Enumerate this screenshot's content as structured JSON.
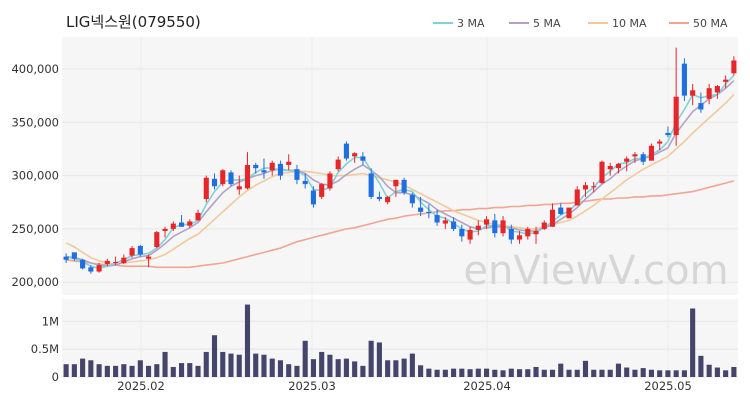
{
  "chart_data": [
    {
      "type": "candlestick",
      "title": "LIG넥스원(079550)",
      "ylim": [
        188000,
        430000
      ],
      "y_ticks": [
        "200,000",
        "250,000",
        "300,000",
        "350,000",
        "400,000"
      ],
      "y_tick_values": [
        200000,
        250000,
        300000,
        350000,
        400000
      ],
      "x_ticks": [
        "2025.02",
        "2025.03",
        "2025.04",
        "2025.05"
      ],
      "grid": true,
      "legend_position": "top-right",
      "series": [
        {
          "name": "3 MA",
          "color": "#7fd3d8"
        },
        {
          "name": "5 MA",
          "color": "#b3a2c7"
        },
        {
          "name": "10 MA",
          "color": "#f2c99a"
        },
        {
          "name": "50 MA",
          "color": "#f2a593"
        }
      ],
      "up_color": "#e8262a",
      "down_color": "#1f6fe0",
      "ohlc": [
        [
          224000,
          227000,
          218000,
          221000
        ],
        [
          228000,
          228000,
          220000,
          222000
        ],
        [
          221000,
          222000,
          212000,
          213000
        ],
        [
          214000,
          216000,
          208000,
          210000
        ],
        [
          210000,
          218000,
          209000,
          216000
        ],
        [
          217000,
          222000,
          215000,
          220000
        ],
        [
          219000,
          224000,
          216000,
          219000
        ],
        [
          218000,
          226000,
          217000,
          223000
        ],
        [
          225000,
          234000,
          223000,
          232000
        ],
        [
          234000,
          235000,
          224000,
          226000
        ],
        [
          222000,
          226000,
          214000,
          224000
        ],
        [
          233000,
          248000,
          232000,
          247000
        ],
        [
          248000,
          252000,
          242000,
          250000
        ],
        [
          250000,
          257000,
          248000,
          255000
        ],
        [
          256000,
          263000,
          252000,
          252000
        ],
        [
          253000,
          259000,
          251000,
          257000
        ],
        [
          258000,
          268000,
          258000,
          265000
        ],
        [
          278000,
          300000,
          275000,
          298000
        ],
        [
          297000,
          302000,
          287000,
          290000
        ],
        [
          292000,
          306000,
          290000,
          305000
        ],
        [
          303000,
          305000,
          290000,
          292000
        ],
        [
          287000,
          300000,
          282000,
          290000
        ],
        [
          288000,
          322000,
          287000,
          310000
        ],
        [
          310000,
          312000,
          302000,
          307000
        ],
        [
          305000,
          316000,
          297000,
          303000
        ],
        [
          305000,
          314000,
          300000,
          312000
        ],
        [
          311000,
          314000,
          296000,
          300000
        ],
        [
          310000,
          320000,
          305000,
          313000
        ],
        [
          306000,
          310000,
          292000,
          296000
        ],
        [
          295000,
          302000,
          288000,
          292000
        ],
        [
          286000,
          290000,
          270000,
          273000
        ],
        [
          280000,
          293000,
          278000,
          292000
        ],
        [
          288000,
          304000,
          286000,
          302000
        ],
        [
          306000,
          318000,
          304000,
          315000
        ],
        [
          330000,
          332000,
          314000,
          316000
        ],
        [
          318000,
          322000,
          312000,
          321000
        ],
        [
          318000,
          322000,
          310000,
          314000
        ],
        [
          302000,
          307000,
          278000,
          280000
        ],
        [
          280000,
          285000,
          276000,
          278000
        ],
        [
          275000,
          281000,
          273000,
          280000
        ],
        [
          290000,
          296000,
          280000,
          296000
        ],
        [
          296000,
          298000,
          282000,
          284000
        ],
        [
          282000,
          284000,
          270000,
          274000
        ],
        [
          270000,
          280000,
          262000,
          266000
        ],
        [
          266000,
          273000,
          260000,
          265000
        ],
        [
          263000,
          268000,
          253000,
          256000
        ],
        [
          255000,
          261000,
          250000,
          258000
        ],
        [
          257000,
          261000,
          248000,
          250000
        ],
        [
          250000,
          254000,
          238000,
          243000
        ],
        [
          240000,
          252000,
          236000,
          249000
        ],
        [
          249000,
          258000,
          244000,
          253000
        ],
        [
          254000,
          262000,
          250000,
          259000
        ],
        [
          258000,
          264000,
          242000,
          246000
        ],
        [
          246000,
          262000,
          243000,
          258000
        ],
        [
          250000,
          254000,
          236000,
          240000
        ],
        [
          240000,
          248000,
          236000,
          244000
        ],
        [
          243000,
          252000,
          240000,
          250000
        ],
        [
          245000,
          252000,
          236000,
          248000
        ],
        [
          250000,
          258000,
          249000,
          256000
        ],
        [
          252000,
          274000,
          252000,
          268000
        ],
        [
          270000,
          274000,
          263000,
          264000
        ],
        [
          260000,
          270000,
          260000,
          270000
        ],
        [
          272000,
          290000,
          272000,
          287000
        ],
        [
          287000,
          294000,
          280000,
          291000
        ],
        [
          289000,
          294000,
          284000,
          290000
        ],
        [
          293000,
          314000,
          292000,
          313000
        ],
        [
          306000,
          312000,
          300000,
          309000
        ],
        [
          307000,
          312000,
          302000,
          311000
        ],
        [
          313000,
          318000,
          304000,
          316000
        ],
        [
          318000,
          322000,
          312000,
          320000
        ],
        [
          320000,
          322000,
          310000,
          313000
        ],
        [
          314000,
          330000,
          314000,
          328000
        ],
        [
          330000,
          334000,
          324000,
          332000
        ],
        [
          340000,
          346000,
          336000,
          338000
        ],
        [
          338000,
          420000,
          328000,
          374000
        ],
        [
          405000,
          410000,
          370000,
          375000
        ],
        [
          375000,
          386000,
          366000,
          380000
        ],
        [
          368000,
          378000,
          359000,
          362000
        ],
        [
          372000,
          386000,
          367000,
          382000
        ],
        [
          378000,
          385000,
          372000,
          384000
        ],
        [
          388000,
          394000,
          382000,
          390000
        ],
        [
          396000,
          412000,
          394000,
          408000
        ]
      ],
      "ma3": [
        224000,
        222000,
        219000,
        215000,
        213000,
        215000,
        218000,
        221000,
        225000,
        226000,
        227000,
        232000,
        240000,
        251000,
        254000,
        254000,
        258000,
        273000,
        285000,
        294000,
        296000,
        296000,
        297000,
        303000,
        307000,
        307000,
        305000,
        305000,
        304000,
        300000,
        287000,
        286000,
        289000,
        303000,
        311000,
        317000,
        317000,
        305000,
        293000,
        279000,
        285000,
        287000,
        285000,
        275000,
        268000,
        262000,
        260000,
        255000,
        250000,
        247000,
        248000,
        253000,
        253000,
        254000,
        248000,
        247000,
        245000,
        247000,
        251000,
        257000,
        263000,
        267000,
        274000,
        283000,
        289000,
        298000,
        304000,
        311000,
        312000,
        316000,
        316000,
        320000,
        324000,
        332000,
        350000,
        362000,
        376000,
        373000,
        375000,
        376000,
        386000,
        394000
      ],
      "ma5": [
        224000,
        223000,
        221000,
        218000,
        216000,
        215000,
        216000,
        219000,
        222000,
        224000,
        225000,
        230000,
        236000,
        243000,
        247000,
        251000,
        256000,
        266000,
        275000,
        284000,
        290000,
        294000,
        297000,
        300000,
        302000,
        305000,
        306000,
        305000,
        305000,
        302000,
        296000,
        292000,
        291000,
        295000,
        301000,
        306000,
        310000,
        305000,
        299000,
        290000,
        284000,
        284000,
        282000,
        278000,
        274000,
        268000,
        264000,
        260000,
        256000,
        252000,
        250000,
        251000,
        252000,
        252000,
        251000,
        249000,
        248000,
        248000,
        251000,
        254000,
        259000,
        264000,
        270000,
        278000,
        285000,
        292000,
        297000,
        304000,
        309000,
        314000,
        316000,
        318000,
        322000,
        326000,
        340000,
        350000,
        360000,
        366000,
        372000,
        376000,
        382000,
        389000
      ],
      "ma10": [
        237000,
        233000,
        228000,
        223000,
        220000,
        218000,
        217000,
        218000,
        219000,
        220000,
        221000,
        223000,
        226000,
        231000,
        236000,
        241000,
        245000,
        252000,
        259000,
        266000,
        273000,
        280000,
        286000,
        291000,
        295000,
        299000,
        302000,
        303000,
        304000,
        304000,
        303000,
        302000,
        300000,
        300000,
        300000,
        301000,
        302000,
        300000,
        298000,
        296000,
        294000,
        291000,
        287000,
        283000,
        279000,
        275000,
        271000,
        267000,
        264000,
        261000,
        258000,
        256000,
        254000,
        253000,
        252000,
        251000,
        250000,
        250000,
        252000,
        254000,
        256000,
        258000,
        262000,
        267000,
        272000,
        278000,
        284000,
        290000,
        296000,
        301000,
        306000,
        310000,
        314000,
        318000,
        325000,
        332000,
        340000,
        347000,
        354000,
        361000,
        368000,
        376000
      ],
      "ma50": [
        221000,
        220000,
        219000,
        218000,
        217000,
        216000,
        216000,
        215000,
        215000,
        215000,
        215000,
        214000,
        214000,
        214000,
        214000,
        214000,
        215000,
        216000,
        217000,
        218000,
        220000,
        222000,
        224000,
        226000,
        228000,
        230000,
        232000,
        235000,
        238000,
        240000,
        242000,
        244000,
        246000,
        248000,
        250000,
        251000,
        253000,
        255000,
        257000,
        259000,
        260000,
        262000,
        263000,
        264000,
        265000,
        266000,
        267000,
        267000,
        268000,
        268000,
        269000,
        269000,
        270000,
        270000,
        271000,
        271000,
        272000,
        272000,
        273000,
        273000,
        274000,
        274000,
        275000,
        276000,
        277000,
        278000,
        278000,
        279000,
        279000,
        280000,
        280000,
        281000,
        281000,
        282000,
        283000,
        284000,
        285000,
        287000,
        289000,
        291000,
        293000,
        295000
      ]
    },
    {
      "type": "bar",
      "ylim": [
        0,
        1400000
      ],
      "y_ticks": [
        "0",
        "0.5M",
        "1M"
      ],
      "y_tick_values": [
        0,
        500000,
        1000000
      ],
      "color": "#45456c",
      "values": [
        230000,
        230000,
        330000,
        300000,
        230000,
        200000,
        200000,
        230000,
        200000,
        300000,
        200000,
        230000,
        450000,
        180000,
        250000,
        250000,
        200000,
        450000,
        750000,
        450000,
        420000,
        400000,
        1300000,
        420000,
        400000,
        330000,
        300000,
        230000,
        200000,
        650000,
        320000,
        450000,
        400000,
        320000,
        330000,
        280000,
        200000,
        650000,
        620000,
        300000,
        300000,
        330000,
        420000,
        210000,
        150000,
        130000,
        130000,
        150000,
        150000,
        140000,
        150000,
        150000,
        130000,
        120000,
        150000,
        140000,
        140000,
        180000,
        130000,
        130000,
        240000,
        130000,
        130000,
        290000,
        130000,
        130000,
        130000,
        240000,
        170000,
        130000,
        160000,
        130000,
        120000,
        120000,
        120000,
        120000,
        1230000,
        380000,
        220000,
        170000,
        120000,
        180000
      ]
    }
  ],
  "watermark": "enViewV.com"
}
